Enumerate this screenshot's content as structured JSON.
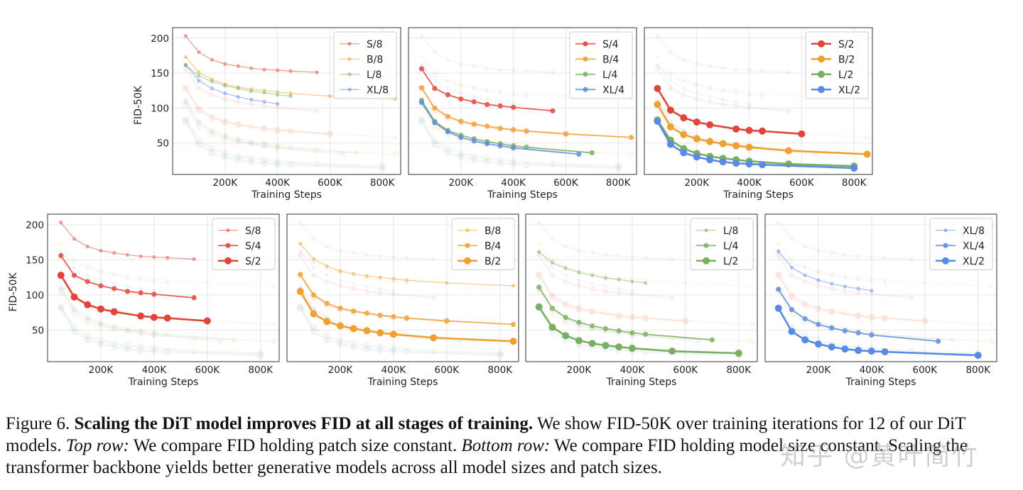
{
  "colors": {
    "S": "#e0453a",
    "B": "#f0a030",
    "L": "#78b060",
    "XL": "#5a8ae8"
  },
  "axis": {
    "x_label": "Training Steps",
    "y_label": "FID-50K",
    "x_ticks": [
      {
        "value": 200000,
        "label": "200K"
      },
      {
        "value": 400000,
        "label": "400K"
      },
      {
        "value": 600000,
        "label": "600K"
      },
      {
        "value": 800000,
        "label": "800K"
      }
    ],
    "y_ticks": [
      {
        "value": 50,
        "label": "50"
      },
      {
        "value": 100,
        "label": "100"
      },
      {
        "value": 150,
        "label": "150"
      },
      {
        "value": 200,
        "label": "200"
      }
    ],
    "xlim": [
      0,
      870000
    ],
    "ylim": [
      5,
      215
    ]
  },
  "chart_data": {
    "type": "line",
    "title": "",
    "xlabel": "Training Steps",
    "ylabel": "FID-50K",
    "series": [
      {
        "name": "S/8",
        "x": [
          50000,
          100000,
          150000,
          200000,
          250000,
          300000,
          350000,
          400000,
          450000,
          550000
        ],
        "y": [
          203,
          180,
          169,
          163,
          160,
          157,
          155,
          154,
          153,
          151
        ]
      },
      {
        "name": "S/4",
        "x": [
          50000,
          100000,
          150000,
          200000,
          250000,
          300000,
          350000,
          400000,
          550000
        ],
        "y": [
          156,
          128,
          119,
          113,
          109,
          105,
          103,
          101,
          96
        ]
      },
      {
        "name": "S/2",
        "x": [
          50000,
          100000,
          150000,
          200000,
          250000,
          350000,
          400000,
          450000,
          600000
        ],
        "y": [
          128,
          97,
          86,
          80,
          76,
          70,
          68,
          67,
          63
        ]
      },
      {
        "name": "B/8",
        "x": [
          50000,
          100000,
          150000,
          200000,
          250000,
          300000,
          350000,
          400000,
          450000,
          600000,
          850000
        ],
        "y": [
          173,
          151,
          141,
          134,
          130,
          127,
          125,
          123,
          121,
          117,
          113
        ]
      },
      {
        "name": "B/4",
        "x": [
          50000,
          100000,
          150000,
          200000,
          250000,
          300000,
          350000,
          400000,
          450000,
          600000,
          850000
        ],
        "y": [
          129,
          100,
          88,
          81,
          77,
          74,
          71,
          69,
          67,
          63,
          58
        ]
      },
      {
        "name": "B/2",
        "x": [
          50000,
          100000,
          150000,
          200000,
          250000,
          300000,
          350000,
          400000,
          550000,
          850000
        ],
        "y": [
          105,
          73,
          62,
          56,
          52,
          49,
          46,
          44,
          39,
          34
        ]
      },
      {
        "name": "L/8",
        "x": [
          50000,
          100000,
          150000,
          200000,
          250000,
          300000,
          350000,
          400000,
          450000
        ],
        "y": [
          161,
          146,
          138,
          132,
          128,
          124,
          122,
          119,
          117
        ]
      },
      {
        "name": "L/4",
        "x": [
          50000,
          100000,
          150000,
          200000,
          250000,
          300000,
          350000,
          400000,
          450000,
          700000
        ],
        "y": [
          111,
          81,
          68,
          61,
          56,
          52,
          49,
          46,
          44,
          36
        ]
      },
      {
        "name": "L/2",
        "x": [
          50000,
          100000,
          150000,
          200000,
          250000,
          300000,
          350000,
          400000,
          550000,
          800000
        ],
        "y": [
          83,
          54,
          42,
          35,
          31,
          28,
          26,
          24,
          20,
          17
        ]
      },
      {
        "name": "XL/8",
        "x": [
          50000,
          100000,
          150000,
          200000,
          250000,
          300000,
          350000,
          400000
        ],
        "y": [
          162,
          139,
          128,
          121,
          116,
          112,
          109,
          106
        ]
      },
      {
        "name": "XL/4",
        "x": [
          50000,
          100000,
          150000,
          200000,
          250000,
          300000,
          350000,
          400000,
          650000
        ],
        "y": [
          108,
          79,
          66,
          58,
          53,
          49,
          46,
          43,
          34
        ]
      },
      {
        "name": "XL/2",
        "x": [
          50000,
          100000,
          150000,
          200000,
          250000,
          300000,
          350000,
          400000,
          450000,
          800000
        ],
        "y": [
          81,
          48,
          36,
          30,
          26,
          23,
          21,
          20,
          19,
          14
        ]
      }
    ],
    "panels": [
      {
        "id": "top-1",
        "highlight": [
          "S/8",
          "B/8",
          "L/8",
          "XL/8"
        ],
        "legend": [
          "S/8",
          "B/8",
          "L/8",
          "XL/8"
        ],
        "show_ylabel": true
      },
      {
        "id": "top-2",
        "highlight": [
          "S/4",
          "B/4",
          "L/4",
          "XL/4"
        ],
        "legend": [
          "S/4",
          "B/4",
          "L/4",
          "XL/4"
        ],
        "show_ylabel": false
      },
      {
        "id": "top-3",
        "highlight": [
          "S/2",
          "B/2",
          "L/2",
          "XL/2"
        ],
        "legend": [
          "S/2",
          "B/2",
          "L/2",
          "XL/2"
        ],
        "show_ylabel": false
      },
      {
        "id": "bottom-1",
        "highlight": [
          "S/8",
          "S/4",
          "S/2"
        ],
        "legend": [
          "S/8",
          "S/4",
          "S/2"
        ],
        "show_ylabel": true
      },
      {
        "id": "bottom-2",
        "highlight": [
          "B/8",
          "B/4",
          "B/2"
        ],
        "legend": [
          "B/8",
          "B/4",
          "B/2"
        ],
        "show_ylabel": false
      },
      {
        "id": "bottom-3",
        "highlight": [
          "L/8",
          "L/4",
          "L/2"
        ],
        "legend": [
          "L/8",
          "L/4",
          "L/2"
        ],
        "show_ylabel": false
      },
      {
        "id": "bottom-4",
        "highlight": [
          "XL/8",
          "XL/4",
          "XL/2"
        ],
        "legend": [
          "XL/8",
          "XL/4",
          "XL/2"
        ],
        "show_ylabel": false
      }
    ]
  },
  "caption": {
    "label": "Figure 6.",
    "bold": "Scaling the DiT model improves FID at all stages of training.",
    "text1": "We show FID-50K over training iterations for 12 of our DiT models.",
    "italic1": "Top row:",
    "text2": "We compare FID holding patch size constant.",
    "italic2": "Bottom row:",
    "text3": "We compare FID holding model size constant. Scaling the transformer backbone yields better generative models across all model sizes and patch sizes."
  },
  "watermark": "知乎 @黄叶简竹"
}
